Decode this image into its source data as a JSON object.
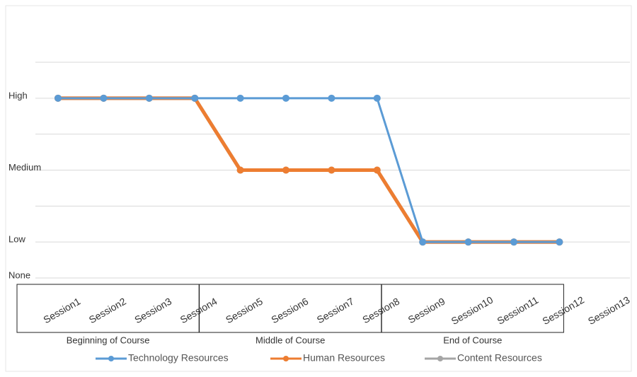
{
  "chart_data": {
    "type": "line",
    "categories": [
      "Session1",
      "Session2",
      "Session3",
      "Session4",
      "Session5",
      "Session6",
      "Session7",
      "Session8",
      "Session9",
      "Session10",
      "Session11",
      "Session12",
      "Session13"
    ],
    "groups": [
      {
        "label": "Beginning of Course",
        "span": [
          0,
          3
        ]
      },
      {
        "label": "Middle of Course",
        "span": [
          4,
          7
        ]
      },
      {
        "label": "End of Course",
        "span": [
          8,
          11
        ]
      }
    ],
    "series": [
      {
        "name": "Technology Resources",
        "color": "#5b9bd5",
        "values": [
          3,
          3,
          3,
          3,
          3,
          3,
          3,
          3,
          1,
          1,
          1,
          1,
          null
        ]
      },
      {
        "name": "Human Resources",
        "color": "#ed7d31",
        "values": [
          3,
          3,
          3,
          3,
          2,
          2,
          2,
          2,
          1,
          1,
          1,
          1,
          null
        ]
      },
      {
        "name": "Content Resources",
        "color": "#a5a5a5",
        "values": [
          3,
          3,
          3,
          3,
          2,
          2,
          2,
          2,
          1,
          1,
          1,
          1,
          null
        ]
      }
    ],
    "ylim": [
      0.5,
      3.5
    ],
    "yticks": [
      {
        "value": 0.5,
        "label": "None"
      },
      {
        "value": 1,
        "label": "Low"
      },
      {
        "value": 2,
        "label": "Medium"
      },
      {
        "value": 3,
        "label": "High"
      }
    ],
    "grid_lines": [
      1.5,
      2.5,
      3.5
    ],
    "grid": true,
    "legend": "bottom"
  }
}
